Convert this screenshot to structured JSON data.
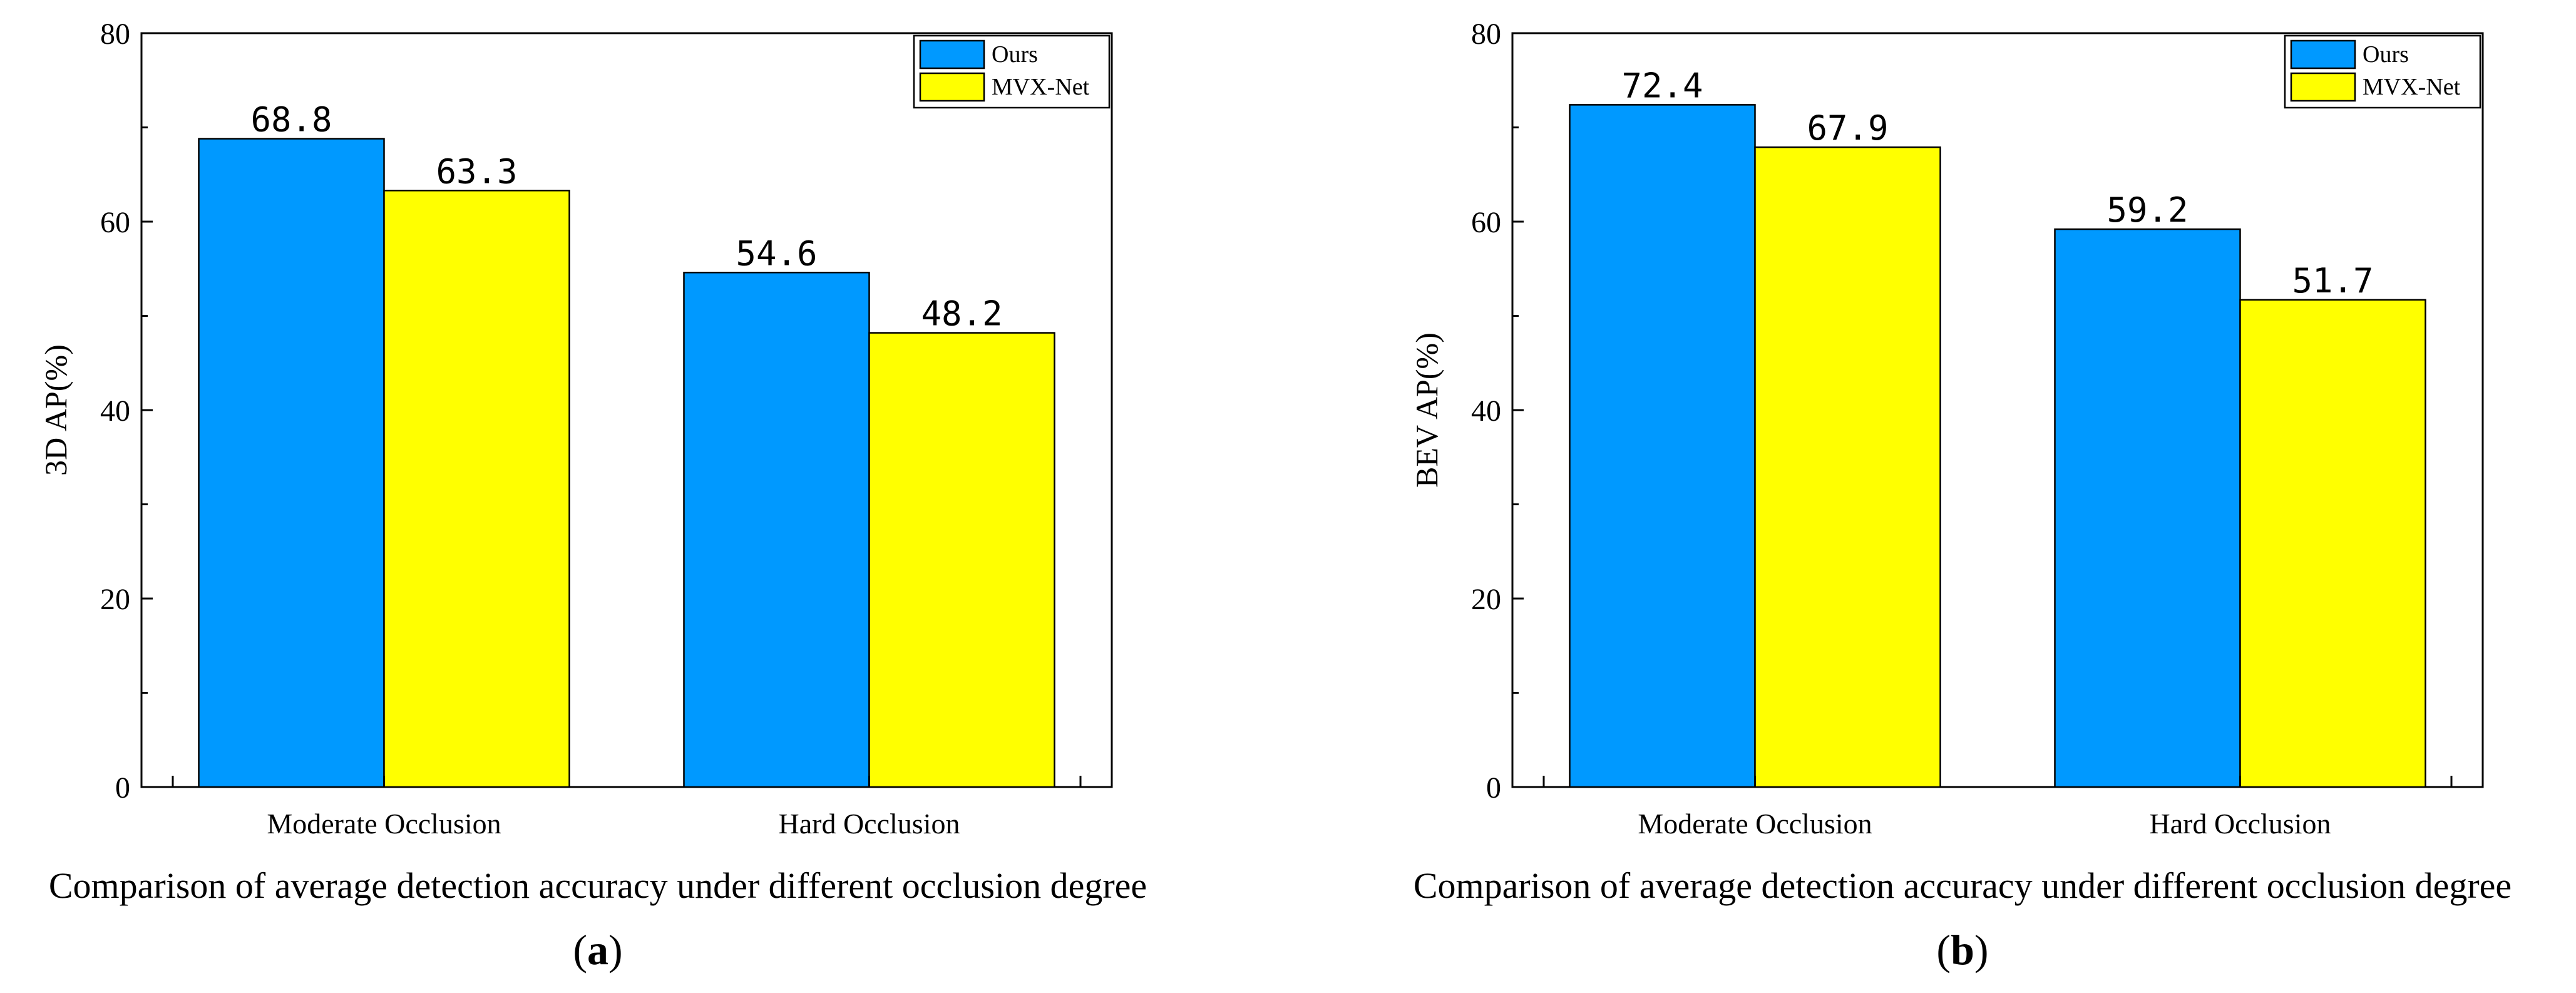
{
  "chart_data": [
    {
      "type": "bar",
      "panel_label": "a",
      "caption": "Comparison of average detection accuracy under different occlusion degree",
      "title": "",
      "xlabel": "",
      "ylabel": "3D AP(%)",
      "ylim": [
        0,
        80
      ],
      "yticks": [
        0,
        20,
        40,
        60,
        80
      ],
      "categories": [
        "Moderate Occlusion",
        "Hard Occlusion"
      ],
      "series": [
        {
          "name": "Ours",
          "values": [
            68.8,
            54.6
          ],
          "color": "#0099FF"
        },
        {
          "name": "MVX-Net",
          "values": [
            63.3,
            48.2
          ],
          "color": "#FFFF00"
        }
      ],
      "value_labels": [
        [
          "68.8",
          "54.6"
        ],
        [
          "63.3",
          "48.2"
        ]
      ],
      "legend_position": "top-right"
    },
    {
      "type": "bar",
      "panel_label": "b",
      "caption": "Comparison of average detection accuracy under different occlusion degree",
      "title": "",
      "xlabel": "",
      "ylabel": "BEV AP(%)",
      "ylim": [
        0,
        80
      ],
      "yticks": [
        0,
        20,
        40,
        60,
        80
      ],
      "categories": [
        "Moderate Occlusion",
        "Hard Occlusion"
      ],
      "series": [
        {
          "name": "Ours",
          "values": [
            72.4,
            59.2
          ],
          "color": "#0099FF"
        },
        {
          "name": "MVX-Net",
          "values": [
            67.9,
            51.7
          ],
          "color": "#FFFF00"
        }
      ],
      "value_labels": [
        [
          "72.4",
          "59.2"
        ],
        [
          "67.9",
          "51.7"
        ]
      ],
      "legend_position": "top-right"
    }
  ]
}
